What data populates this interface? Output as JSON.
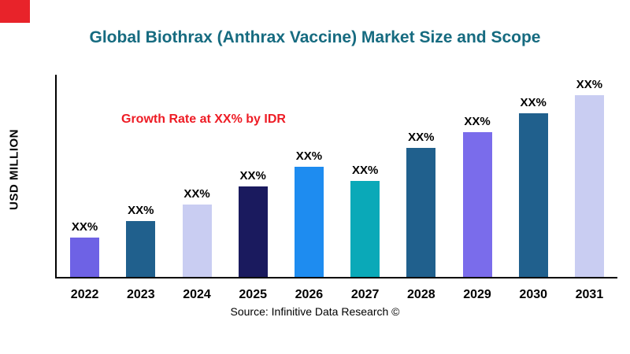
{
  "page": {
    "title": "Global Biothrax (Anthrax Vaccine) Market Size and Scope",
    "title_color": "#166b80",
    "annotation": "Growth Rate at XX% by IDR",
    "annotation_color": "#ee1c25",
    "corner_mark_color": "#e8232a",
    "y_axis_label": "USD MILLION",
    "source": "Source: Infinitive Data Research ©"
  },
  "chart_data": {
    "type": "bar",
    "title": "Global Biothrax (Anthrax Vaccine) Market Size and Scope",
    "xlabel": "",
    "ylabel": "USD MILLION",
    "categories": [
      "2022",
      "2023",
      "2024",
      "2025",
      "2026",
      "2027",
      "2028",
      "2029",
      "2030",
      "2031"
    ],
    "values": [
      50,
      71,
      92,
      115,
      140,
      122,
      164,
      184,
      208,
      231
    ],
    "value_labels": [
      "XX%",
      "XX%",
      "XX%",
      "XX%",
      "XX%",
      "XX%",
      "XX%",
      "XX%",
      "XX%",
      "XX%"
    ],
    "bar_colors": [
      "#6e62e5",
      "#20608d",
      "#c9cdf2",
      "#1a1a5e",
      "#1e8cf0",
      "#0aa9b8",
      "#20608d",
      "#7a6ceb",
      "#20608d",
      "#c9cdf2"
    ],
    "ylim": [
      0,
      260
    ],
    "grid": false,
    "legend": false,
    "annotation": "Growth Rate at XX% by IDR"
  }
}
